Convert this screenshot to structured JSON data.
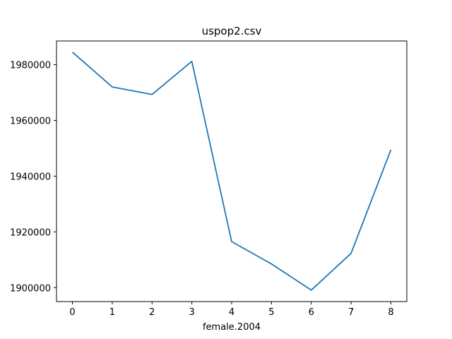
{
  "chart_data": {
    "type": "line",
    "title": "uspop2.csv",
    "xlabel": "female.2004",
    "ylabel": "",
    "x": [
      0,
      1,
      2,
      3,
      4,
      5,
      6,
      7,
      8
    ],
    "series": [
      {
        "values": [
          1984500,
          1972000,
          1969300,
          1981200,
          1916500,
          1908500,
          1899100,
          1912300,
          1949500
        ],
        "color": "#1f77b4"
      }
    ],
    "xlim": [
      -0.4,
      8.4
    ],
    "ylim": [
      1895000,
      1988500
    ],
    "xticks": [
      0,
      1,
      2,
      3,
      4,
      5,
      6,
      7,
      8
    ],
    "yticks": [
      1900000,
      1920000,
      1940000,
      1960000,
      1980000
    ],
    "grid": false
  }
}
